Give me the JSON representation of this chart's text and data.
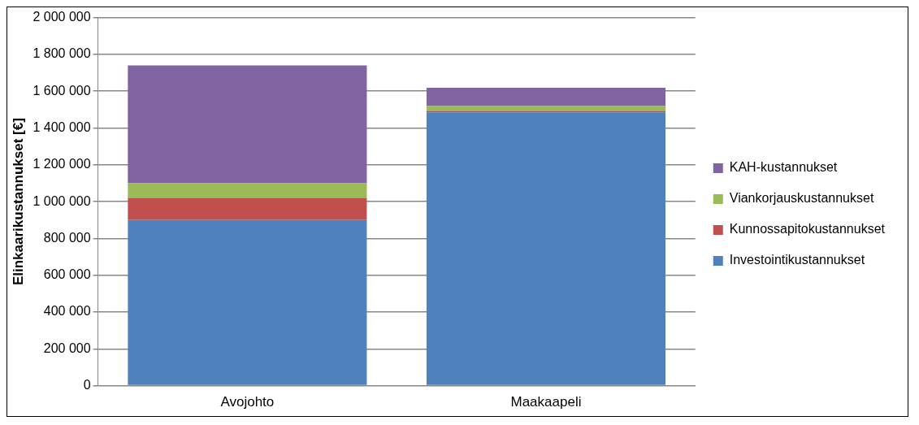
{
  "chart_data": {
    "type": "bar",
    "stacked": true,
    "ylabel": "Elinkaarikustannukset [€]",
    "categories": [
      "Avojohto",
      "Maakaapeli"
    ],
    "series": [
      {
        "name": "Investointikustannukset",
        "color": "#4f81bd",
        "values": [
          900000,
          1485000
        ]
      },
      {
        "name": "Kunnossapitokustannukset",
        "color": "#c0504d",
        "values": [
          120000,
          8000
        ]
      },
      {
        "name": "Viankorjauskustannukset",
        "color": "#9bbb59",
        "values": [
          80000,
          26000
        ]
      },
      {
        "name": "KAH-kustannukset",
        "color": "#8064a2",
        "values": [
          640000,
          100000
        ]
      }
    ],
    "ylim": [
      0,
      2000000
    ],
    "yticks": [
      0,
      200000,
      400000,
      600000,
      800000,
      1000000,
      1200000,
      1400000,
      1600000,
      1800000,
      2000000
    ],
    "grid": "y",
    "legend": "right"
  }
}
